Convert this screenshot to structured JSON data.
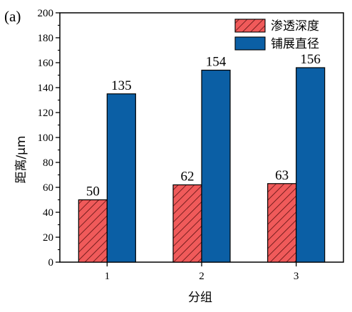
{
  "panel_label": "(a)",
  "chart_data": {
    "type": "bar",
    "categories": [
      "1",
      "2",
      "3"
    ],
    "series": [
      {
        "name": "渗透深度",
        "values": [
          50,
          62,
          63
        ],
        "color": "#f05a5a",
        "pattern": "diagonal-hatch"
      },
      {
        "name": "铺展直径",
        "values": [
          135,
          154,
          156
        ],
        "color": "#0b5fa5",
        "pattern": "solid"
      }
    ],
    "data_labels": [
      [
        "50",
        "62",
        "63"
      ],
      [
        "135",
        "154",
        "156"
      ]
    ],
    "xlabel": "分组",
    "ylabel": "距离/μm",
    "ylim": [
      0,
      200
    ],
    "y_ticks": [
      "0",
      "20",
      "40",
      "60",
      "80",
      "100",
      "120",
      "140",
      "160",
      "180",
      "200"
    ],
    "grid": false,
    "legend_position": "top-right"
  }
}
